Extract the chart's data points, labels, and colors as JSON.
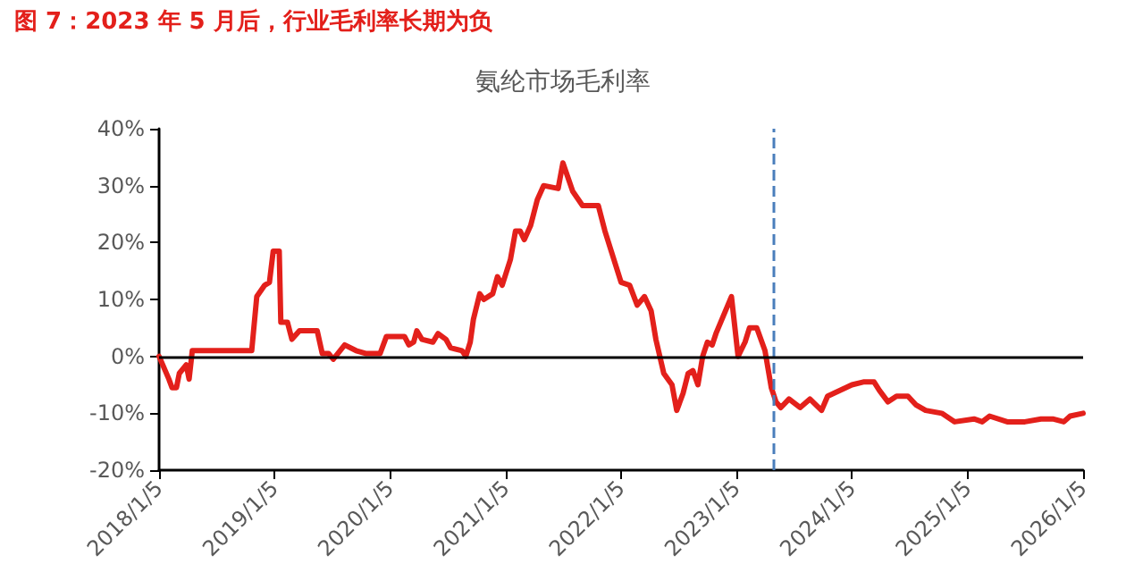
{
  "chart_data": {
    "type": "line",
    "title": "氨纶市场毛利率",
    "annotations": [
      "图 7：2023 年 5 月后，行业毛利率长期为负"
    ],
    "x": [
      "2018-01-05",
      "2018-02-05",
      "2018-02-15",
      "2018-03-01",
      "2018-03-10",
      "2018-04-01",
      "2018-04-10",
      "2018-04-20",
      "2018-05-10",
      "2018-10-10",
      "2018-10-25",
      "2018-11-10",
      "2018-12-05",
      "2018-12-20",
      "2019-01-01",
      "2019-01-20",
      "2019-01-25",
      "2019-02-15",
      "2019-03-01",
      "2019-03-25",
      "2019-05-20",
      "2019-06-05",
      "2019-06-25",
      "2019-07-10",
      "2019-08-15",
      "2019-09-20",
      "2019-10-20",
      "2019-12-05",
      "2019-12-25",
      "2020-02-20",
      "2020-03-05",
      "2020-03-20",
      "2020-03-30",
      "2020-04-15",
      "2020-05-20",
      "2020-06-05",
      "2020-06-30",
      "2020-07-15",
      "2020-08-20",
      "2020-09-01",
      "2020-09-15",
      "2020-09-25",
      "2020-10-15",
      "2020-10-28",
      "2020-11-25",
      "2020-12-10",
      "2020-12-25",
      "2021-01-20",
      "2021-02-05",
      "2021-02-20",
      "2021-03-05",
      "2021-03-25",
      "2021-04-15",
      "2021-05-05",
      "2021-06-20",
      "2021-07-05",
      "2021-08-05",
      "2021-09-05",
      "2021-10-25",
      "2021-11-15",
      "2022-01-05",
      "2022-02-01",
      "2022-02-25",
      "2022-03-20",
      "2022-04-10",
      "2022-04-25",
      "2022-05-20",
      "2022-06-15",
      "2022-06-30",
      "2022-07-20",
      "2022-08-05",
      "2022-08-20",
      "2022-09-05",
      "2022-09-20",
      "2022-10-05",
      "2022-10-20",
      "2022-11-01",
      "2022-12-20",
      "2023-01-10",
      "2023-02-01",
      "2023-02-15",
      "2023-03-10",
      "2023-04-05",
      "2023-04-25",
      "2023-05-10",
      "2023-05-25",
      "2023-06-20",
      "2023-07-25",
      "2023-08-25",
      "2023-10-01",
      "2023-10-20",
      "2024-01-05",
      "2024-02-10",
      "2024-03-15",
      "2024-04-01",
      "2024-04-28",
      "2024-05-25",
      "2024-06-30",
      "2024-07-25",
      "2024-08-25",
      "2024-10-15",
      "2024-11-25",
      "2025-01-25",
      "2025-02-20",
      "2025-03-15",
      "2025-05-10",
      "2025-07-05",
      "2025-08-25",
      "2025-10-01",
      "2025-11-05",
      "2025-11-25",
      "2026-01-05"
    ],
    "series": [
      {
        "color": "#e3201b",
        "values": [
          0,
          -4,
          -5.5,
          -5.5,
          -3,
          -1.5,
          -4,
          1,
          1,
          1,
          1,
          10.5,
          12.5,
          13,
          18.5,
          18.5,
          6,
          6,
          3,
          4.5,
          4.5,
          0.5,
          0.5,
          -0.5,
          2,
          1,
          0.5,
          0.5,
          3.5,
          3.5,
          2,
          2.5,
          4.5,
          3,
          2.5,
          4,
          3,
          1.5,
          1,
          0,
          2.5,
          6.5,
          11,
          10,
          11,
          14,
          12.5,
          17,
          22,
          22,
          20.5,
          23,
          27.5,
          30,
          29.5,
          34,
          29,
          26.5,
          26.5,
          22,
          13,
          12.5,
          9,
          10.5,
          8,
          3,
          -3,
          -5,
          -9.5,
          -6.5,
          -3,
          -2.5,
          -5,
          0,
          2.5,
          2,
          4,
          10.5,
          0,
          2.5,
          5,
          5,
          1,
          -5.5,
          -8,
          -9,
          -7.5,
          -9,
          -7.5,
          -9.5,
          -7,
          -5,
          -4.5,
          -4.5,
          -6,
          -8,
          -7,
          -7,
          -8.5,
          -9.5,
          -10,
          -11.5,
          -11,
          -11.5,
          -10.5,
          -11.5,
          -11.5,
          -11,
          -11,
          -11.5,
          -10.5,
          -10
        ]
      }
    ],
    "xlim": [
      "2018-01-05",
      "2026-01-05"
    ],
    "xticks": [
      {
        "value": "2018-01-05",
        "label": "2018/1/5"
      },
      {
        "value": "2019-01-05",
        "label": "2019/1/5"
      },
      {
        "value": "2020-01-05",
        "label": "2020/1/5"
      },
      {
        "value": "2021-01-05",
        "label": "2021/1/5"
      },
      {
        "value": "2022-01-05",
        "label": "2022/1/5"
      },
      {
        "value": "2023-01-05",
        "label": "2023/1/5"
      },
      {
        "value": "2024-01-05",
        "label": "2024/1/5"
      },
      {
        "value": "2025-01-05",
        "label": "2025/1/5"
      },
      {
        "value": "2026-01-05",
        "label": "2026/1/5"
      }
    ],
    "ylim": [
      -20,
      40
    ],
    "yticks": [
      {
        "value": -20,
        "label": "-20%"
      },
      {
        "value": -10,
        "label": "-10%"
      },
      {
        "value": 0,
        "label": "0%"
      },
      {
        "value": 10,
        "label": "10%"
      },
      {
        "value": 20,
        "label": "20%"
      },
      {
        "value": 30,
        "label": "30%"
      },
      {
        "value": 40,
        "label": "40%"
      }
    ],
    "ref_lines": [
      {
        "axis": "x",
        "value": "2023-05-01",
        "color": "#4a7ebb",
        "line_style": "dashed"
      },
      {
        "axis": "y",
        "value": 0,
        "color": "#000000",
        "line_style": "solid"
      }
    ],
    "grid": false,
    "marker": "none",
    "line_style": "solid"
  }
}
